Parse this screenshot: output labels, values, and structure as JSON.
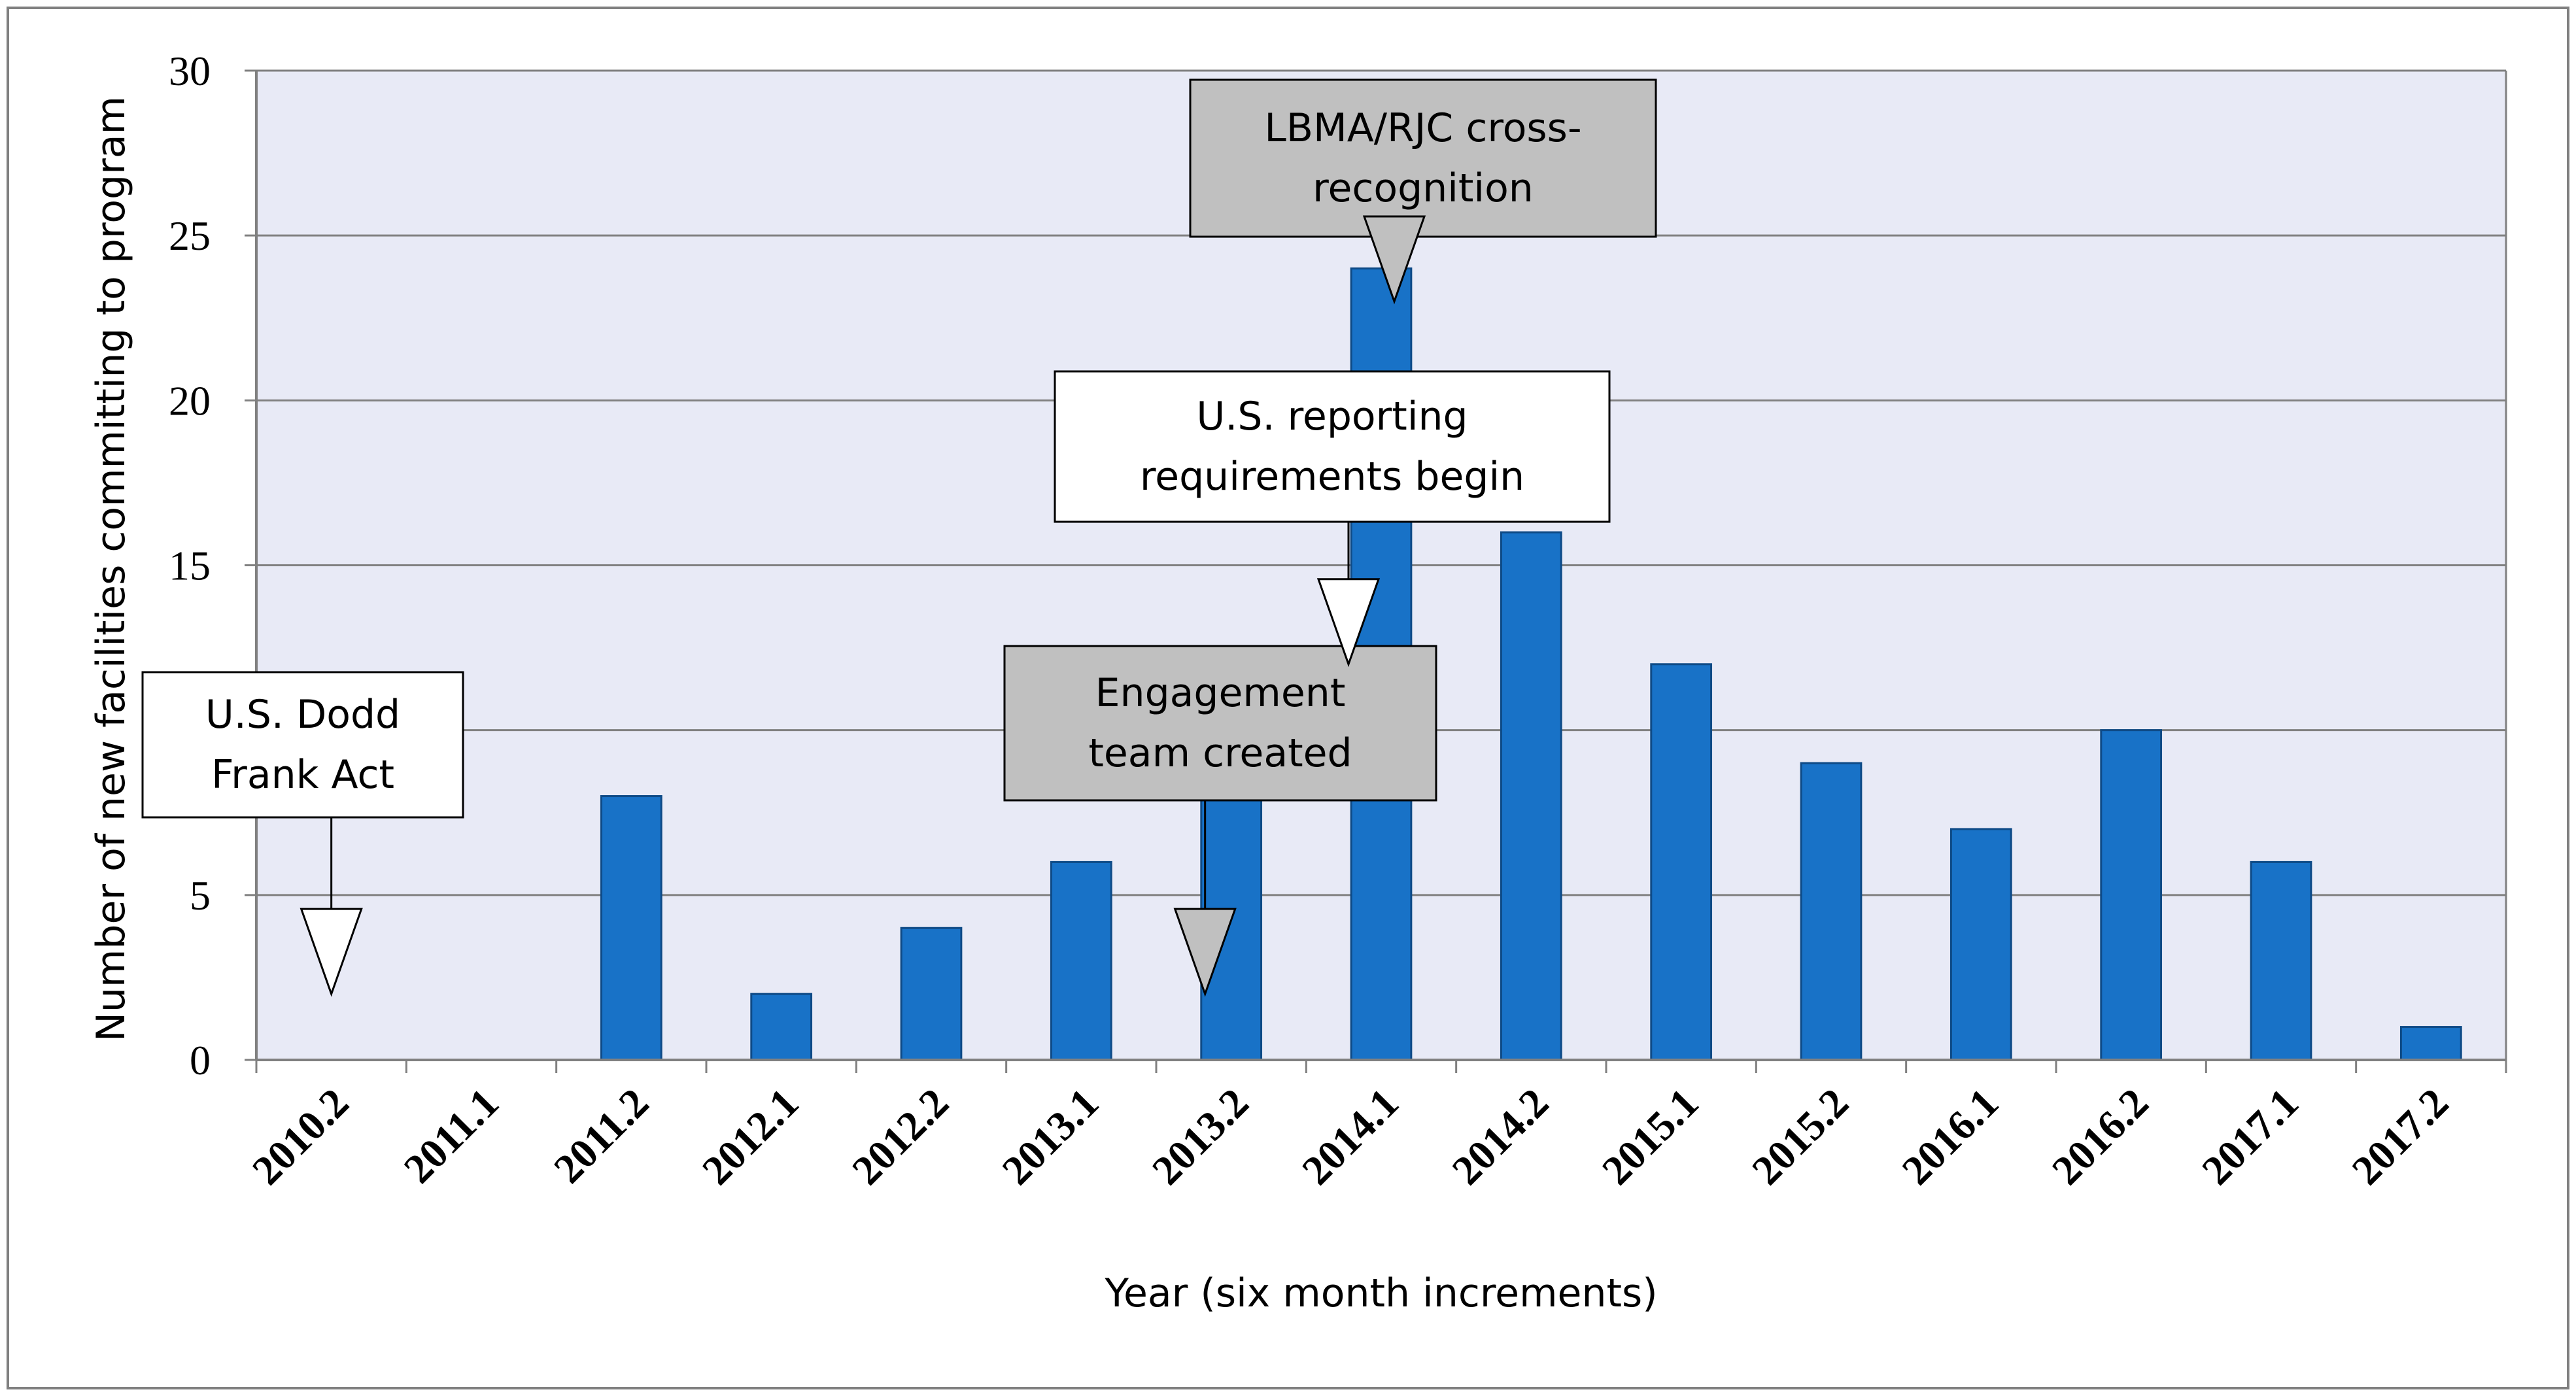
{
  "chart_data": {
    "type": "bar",
    "title": "",
    "xlabel": "Year (six month increments)",
    "ylabel": "Number of new facilities committing to program",
    "ylim": [
      0,
      30
    ],
    "yticks": [
      "0",
      "5",
      "10",
      "15",
      "20",
      "25",
      "30"
    ],
    "grid": true,
    "categories": [
      "2010.2",
      "2011.1",
      "2011.2",
      "2012.1",
      "2012.2",
      "2013.1",
      "2013.2",
      "2014.1",
      "2014.2",
      "2015.1",
      "2015.2",
      "2016.1",
      "2016.2",
      "2017.1",
      "2017.2"
    ],
    "values": [
      0,
      0,
      8,
      2,
      4,
      6,
      8,
      24,
      16,
      12,
      9,
      7,
      10,
      6,
      1
    ],
    "colors": {
      "plot_background": "#e8eaf6",
      "bar": "#1872c7",
      "bar_edge": "#0e4a86",
      "gridline": "#808080",
      "frame": "#808080",
      "annotation_gray": "#c0c0c0",
      "annotation_white": "#ffffff"
    },
    "annotations": [
      {
        "id": "dodd-frank",
        "lines": [
          "U.S. Dodd",
          "Frank Act"
        ],
        "style": "white",
        "category": "2010.2",
        "y": 2
      },
      {
        "id": "engagement",
        "lines": [
          "Engagement",
          "team created"
        ],
        "style": "gray",
        "category": "2013.2",
        "y": 2
      },
      {
        "id": "reporting",
        "lines": [
          "U.S. reporting",
          "requirements begin"
        ],
        "style": "white",
        "category": "2014.1",
        "y": 12
      },
      {
        "id": "lbma",
        "lines": [
          "LBMA/RJC cross-",
          "recognition"
        ],
        "style": "gray",
        "category": "2014.1",
        "y": 23
      }
    ]
  }
}
